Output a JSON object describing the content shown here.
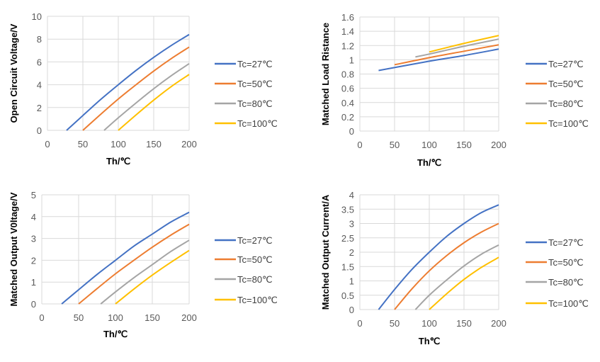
{
  "chart_data": [
    {
      "type": "line",
      "title": "",
      "xlabel": "Th/℃",
      "ylabel": "Open Circuit Voltage/V",
      "xlim": [
        0,
        200
      ],
      "ylim": [
        0,
        10
      ],
      "xticks": [
        0,
        50,
        100,
        150,
        200
      ],
      "yticks": [
        0,
        2,
        4,
        6,
        8,
        10
      ],
      "grid": true,
      "legend": "right",
      "series": [
        {
          "name": "Tc=27℃",
          "color": "#4472C4",
          "points": [
            [
              27,
              0
            ],
            [
              50,
              1.3
            ],
            [
              75,
              2.7
            ],
            [
              100,
              4.0
            ],
            [
              125,
              5.25
            ],
            [
              150,
              6.4
            ],
            [
              175,
              7.45
            ],
            [
              200,
              8.4
            ]
          ]
        },
        {
          "name": "Tc=50℃",
          "color": "#ED7D31",
          "points": [
            [
              50,
              0
            ],
            [
              75,
              1.4
            ],
            [
              100,
              2.75
            ],
            [
              125,
              4.0
            ],
            [
              150,
              5.2
            ],
            [
              175,
              6.3
            ],
            [
              200,
              7.3
            ]
          ]
        },
        {
          "name": "Tc=80℃",
          "color": "#A5A5A5",
          "points": [
            [
              80,
              0
            ],
            [
              100,
              1.1
            ],
            [
              125,
              2.4
            ],
            [
              150,
              3.65
            ],
            [
              175,
              4.8
            ],
            [
              200,
              5.85
            ]
          ]
        },
        {
          "name": "Tc=100℃",
          "color": "#FFC000",
          "points": [
            [
              100,
              0
            ],
            [
              125,
              1.35
            ],
            [
              150,
              2.65
            ],
            [
              175,
              3.85
            ],
            [
              200,
              4.9
            ]
          ]
        }
      ]
    },
    {
      "type": "line",
      "title": "",
      "xlabel": "Th/℃",
      "ylabel": "Matched Load Ristance",
      "xlim": [
        0,
        200
      ],
      "ylim": [
        0,
        1.6
      ],
      "xticks": [
        0,
        50,
        100,
        150,
        200
      ],
      "yticks": [
        0,
        0.2,
        0.4,
        0.6,
        0.8,
        1,
        1.2,
        1.4,
        1.6
      ],
      "grid": true,
      "legend": "right",
      "series": [
        {
          "name": "Tc=27℃",
          "color": "#4472C4",
          "points": [
            [
              27,
              0.85
            ],
            [
              100,
              0.98
            ],
            [
              150,
              1.06
            ],
            [
              200,
              1.15
            ]
          ]
        },
        {
          "name": "Tc=50℃",
          "color": "#ED7D31",
          "points": [
            [
              50,
              0.93
            ],
            [
              100,
              1.03
            ],
            [
              150,
              1.12
            ],
            [
              200,
              1.21
            ]
          ]
        },
        {
          "name": "Tc=80℃",
          "color": "#A5A5A5",
          "points": [
            [
              80,
              1.04
            ],
            [
              100,
              1.08
            ],
            [
              150,
              1.19
            ],
            [
              200,
              1.29
            ]
          ]
        },
        {
          "name": "Tc=100℃",
          "color": "#FFC000",
          "points": [
            [
              100,
              1.11
            ],
            [
              150,
              1.23
            ],
            [
              200,
              1.34
            ]
          ]
        }
      ]
    },
    {
      "type": "line",
      "title": "",
      "xlabel": "Th/℃",
      "ylabel": "Matched Output V0ltage/V",
      "xlim": [
        0,
        200
      ],
      "ylim": [
        0,
        5
      ],
      "xticks": [
        0,
        50,
        100,
        150,
        200
      ],
      "yticks": [
        0,
        1,
        2,
        3,
        4,
        5
      ],
      "grid": true,
      "legend": "right",
      "series": [
        {
          "name": "Tc=27℃",
          "color": "#4472C4",
          "points": [
            [
              27,
              0
            ],
            [
              50,
              0.65
            ],
            [
              75,
              1.35
            ],
            [
              100,
              2.0
            ],
            [
              125,
              2.65
            ],
            [
              150,
              3.2
            ],
            [
              175,
              3.75
            ],
            [
              200,
              4.2
            ]
          ]
        },
        {
          "name": "Tc=50℃",
          "color": "#ED7D31",
          "points": [
            [
              50,
              0
            ],
            [
              75,
              0.7
            ],
            [
              100,
              1.38
            ],
            [
              125,
              2.0
            ],
            [
              150,
              2.6
            ],
            [
              175,
              3.15
            ],
            [
              200,
              3.65
            ]
          ]
        },
        {
          "name": "Tc=80℃",
          "color": "#A5A5A5",
          "points": [
            [
              80,
              0
            ],
            [
              100,
              0.55
            ],
            [
              125,
              1.2
            ],
            [
              150,
              1.8
            ],
            [
              175,
              2.4
            ],
            [
              200,
              2.92
            ]
          ]
        },
        {
          "name": "Tc=100℃",
          "color": "#FFC000",
          "points": [
            [
              100,
              0
            ],
            [
              125,
              0.68
            ],
            [
              150,
              1.32
            ],
            [
              175,
              1.9
            ],
            [
              200,
              2.45
            ]
          ]
        }
      ]
    },
    {
      "type": "line",
      "title": "",
      "xlabel": "Th℃",
      "ylabel": "Matched Output Current/A",
      "xlim": [
        0,
        200
      ],
      "ylim": [
        0,
        4
      ],
      "xticks": [
        0,
        50,
        100,
        150,
        200
      ],
      "yticks": [
        0,
        0.5,
        1,
        1.5,
        2,
        2.5,
        3,
        3.5,
        4
      ],
      "grid": true,
      "legend": "right",
      "series": [
        {
          "name": "Tc=27℃",
          "color": "#4472C4",
          "points": [
            [
              27,
              0
            ],
            [
              50,
              0.7
            ],
            [
              75,
              1.4
            ],
            [
              100,
              2.0
            ],
            [
              125,
              2.55
            ],
            [
              150,
              3.0
            ],
            [
              175,
              3.38
            ],
            [
              200,
              3.65
            ]
          ]
        },
        {
          "name": "Tc=50℃",
          "color": "#ED7D31",
          "points": [
            [
              50,
              0
            ],
            [
              75,
              0.72
            ],
            [
              100,
              1.35
            ],
            [
              125,
              1.88
            ],
            [
              150,
              2.33
            ],
            [
              175,
              2.7
            ],
            [
              200,
              3.0
            ]
          ]
        },
        {
          "name": "Tc=80℃",
          "color": "#A5A5A5",
          "points": [
            [
              80,
              0
            ],
            [
              100,
              0.5
            ],
            [
              125,
              1.03
            ],
            [
              150,
              1.52
            ],
            [
              175,
              1.93
            ],
            [
              200,
              2.25
            ]
          ]
        },
        {
          "name": "Tc=100℃",
          "color": "#FFC000",
          "points": [
            [
              100,
              0
            ],
            [
              125,
              0.55
            ],
            [
              150,
              1.05
            ],
            [
              175,
              1.47
            ],
            [
              200,
              1.82
            ]
          ]
        }
      ]
    }
  ]
}
